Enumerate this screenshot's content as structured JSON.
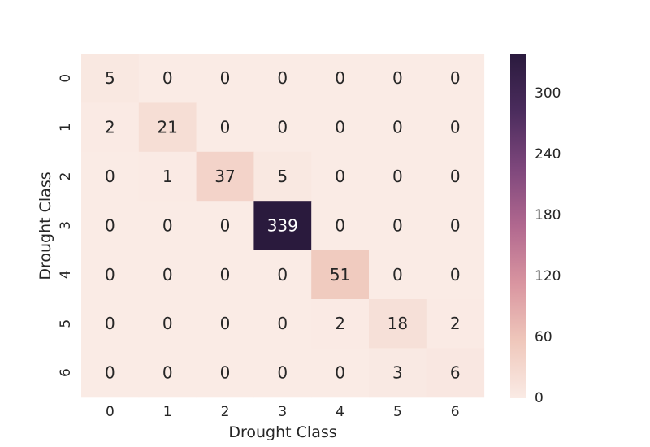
{
  "chart_data": {
    "type": "heatmap",
    "xlabel": "Drought Class",
    "ylabel": "Drought Class",
    "x_categories": [
      "0",
      "1",
      "2",
      "3",
      "4",
      "5",
      "6"
    ],
    "y_categories": [
      "0",
      "1",
      "2",
      "3",
      "4",
      "5",
      "6"
    ],
    "matrix": [
      [
        5,
        0,
        0,
        0,
        0,
        0,
        0
      ],
      [
        2,
        21,
        0,
        0,
        0,
        0,
        0
      ],
      [
        0,
        1,
        37,
        5,
        0,
        0,
        0
      ],
      [
        0,
        0,
        0,
        339,
        0,
        0,
        0
      ],
      [
        0,
        0,
        0,
        0,
        51,
        0,
        0
      ],
      [
        0,
        0,
        0,
        0,
        2,
        18,
        2
      ],
      [
        0,
        0,
        0,
        0,
        0,
        3,
        6
      ]
    ],
    "colorbar": {
      "min": 0,
      "max": 339,
      "ticks": [
        0,
        60,
        120,
        180,
        240,
        300
      ]
    },
    "colorscale": [
      "#faebe5",
      "#efc7bb",
      "#d995a0",
      "#b1688f",
      "#7e477c",
      "#4b2c5d",
      "#2a1a3d"
    ]
  }
}
